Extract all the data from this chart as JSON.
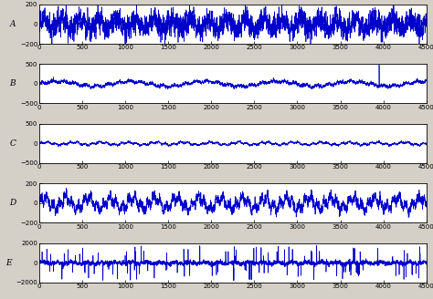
{
  "subplots": [
    {
      "label": "A",
      "ylim": [
        -200,
        200
      ],
      "yticks": [
        -200,
        0,
        200
      ]
    },
    {
      "label": "B",
      "ylim": [
        -500,
        500
      ],
      "yticks": [
        -500,
        0,
        500
      ]
    },
    {
      "label": "C",
      "ylim": [
        -500,
        500
      ],
      "yticks": [
        -500,
        0,
        500
      ]
    },
    {
      "label": "D",
      "ylim": [
        -200,
        200
      ],
      "yticks": [
        -200,
        0,
        200
      ]
    },
    {
      "label": "E",
      "ylim": [
        -2000,
        2000
      ],
      "yticks": [
        -2000,
        0,
        2000
      ]
    }
  ],
  "n_samples": 4500,
  "xlim": [
    0,
    4500
  ],
  "xticks": [
    0,
    500,
    1000,
    1500,
    2000,
    2500,
    3000,
    3500,
    4000,
    4500
  ],
  "line_color": "#0000CC",
  "line_width": 0.5,
  "axes_background": "#ffffff",
  "fig_background": "#d4d0c8",
  "label_fontsize": 6.5,
  "tick_fontsize": 5.0
}
